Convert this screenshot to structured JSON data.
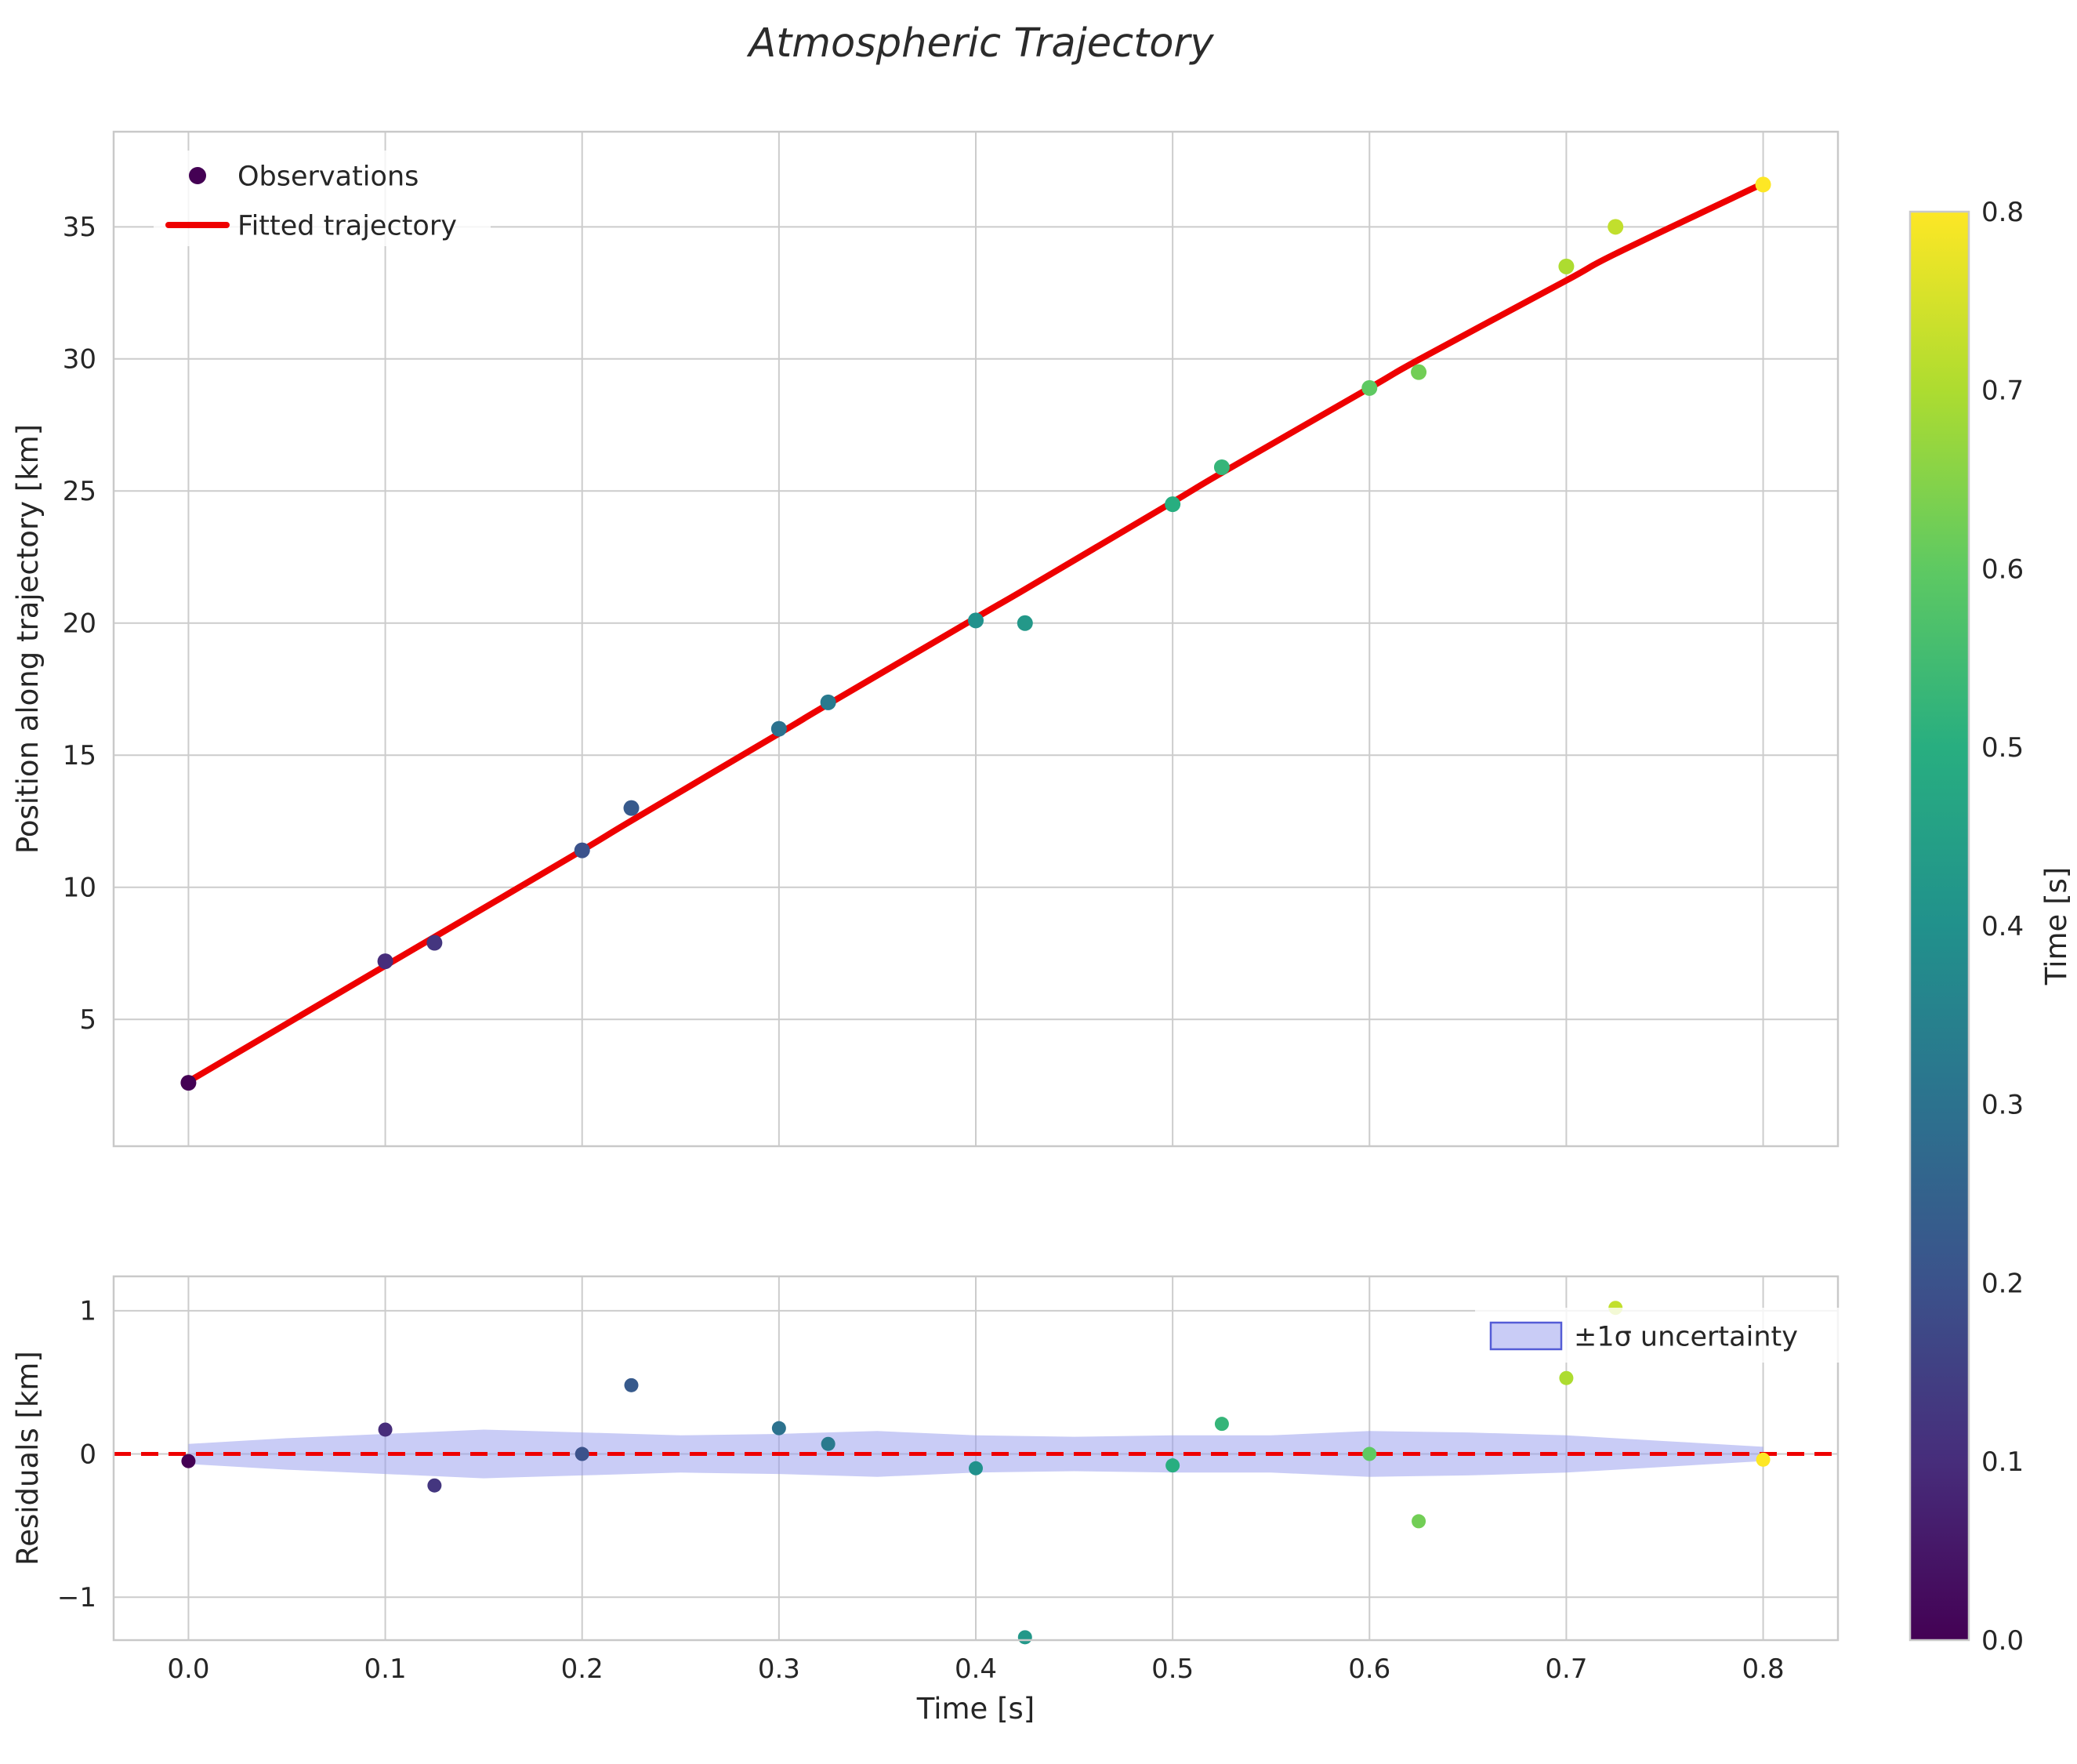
{
  "figure": {
    "title": "Atmospheric Trajectory"
  },
  "style": {
    "background": "#ffffff",
    "grid_color": "#cccccc",
    "spine_color": "#c9c9c9",
    "tick_color": "#262626",
    "title_color": "#2b2b2b",
    "fit_color": "#ee0000",
    "zero_line_color": "#ee0000",
    "band_fill": "#9399ee",
    "band_opacity": 0.5,
    "band_edge": "#545cd6",
    "viridis_stops": [
      [
        0,
        "#440154"
      ],
      [
        0.125,
        "#472d7b"
      ],
      [
        0.25,
        "#3b528b"
      ],
      [
        0.375,
        "#2c728e"
      ],
      [
        0.5,
        "#21918c"
      ],
      [
        0.625,
        "#28ae80"
      ],
      [
        0.75,
        "#5ec962"
      ],
      [
        0.875,
        "#addc30"
      ],
      [
        1,
        "#fde725"
      ]
    ]
  },
  "chart_data": [
    {
      "type": "scatter",
      "panel": "main",
      "title": "Atmospheric Trajectory",
      "xlabel": "",
      "ylabel": "Position along trajectory [km]",
      "xlim": [
        -0.038,
        0.838
      ],
      "ylim": [
        0.2,
        38.6
      ],
      "grid": true,
      "x_gridlines": [
        0.0,
        0.1,
        0.2,
        0.3,
        0.4,
        0.5,
        0.6,
        0.7,
        0.8
      ],
      "y_ticks": [
        5,
        10,
        15,
        20,
        25,
        30,
        35
      ],
      "y_tick_labels": [
        "5",
        "10",
        "15",
        "20",
        "25",
        "30",
        "35"
      ],
      "legend_position": "upper left",
      "legend_labels": [
        "Observations",
        "Fitted trajectory"
      ],
      "series": [
        {
          "name": "Observations",
          "type": "scatter",
          "color_by": "time, viridis colormap",
          "t": [
            0.0,
            0.1,
            0.125,
            0.2,
            0.225,
            0.3,
            0.325,
            0.4,
            0.425,
            0.5,
            0.525,
            0.6,
            0.625,
            0.7,
            0.725,
            0.8
          ],
          "position_km": [
            2.6,
            7.2,
            7.9,
            11.4,
            13.0,
            16.0,
            17.0,
            20.1,
            20.0,
            24.5,
            25.9,
            28.9,
            29.5,
            33.5,
            35.0,
            36.6
          ]
        },
        {
          "name": "Fitted trajectory",
          "type": "line",
          "color": "#ee0000",
          "t": [
            0.0,
            0.1,
            0.125,
            0.2,
            0.225,
            0.3,
            0.325,
            0.4,
            0.425,
            0.5,
            0.525,
            0.6,
            0.625,
            0.7,
            0.725,
            0.8
          ],
          "position_km": [
            2.65,
            7.03,
            8.12,
            11.4,
            12.52,
            15.82,
            16.93,
            20.2,
            21.28,
            24.58,
            25.69,
            28.9,
            29.97,
            32.97,
            33.98,
            36.64
          ]
        }
      ]
    },
    {
      "type": "scatter",
      "panel": "residuals",
      "xlabel": "Time [s]",
      "ylabel": "Residuals [km]",
      "xlim": [
        -0.038,
        0.838
      ],
      "ylim": [
        -1.3,
        1.24
      ],
      "grid": true,
      "x_ticks": [
        0.0,
        0.1,
        0.2,
        0.3,
        0.4,
        0.5,
        0.6,
        0.7,
        0.8
      ],
      "x_tick_labels": [
        "0.0",
        "0.1",
        "0.2",
        "0.3",
        "0.4",
        "0.5",
        "0.6",
        "0.7",
        "0.8"
      ],
      "y_ticks": [
        -1,
        0,
        1
      ],
      "y_tick_labels": [
        "−1",
        "0",
        "1"
      ],
      "zero_line": {
        "y": 0,
        "style": "dashed",
        "color": "#ee0000"
      },
      "legend_labels": [
        "±1σ uncertainty"
      ],
      "band": {
        "label": "±1σ uncertainty",
        "t": [
          0.0,
          0.05,
          0.1,
          0.15,
          0.2,
          0.25,
          0.3,
          0.35,
          0.4,
          0.45,
          0.5,
          0.55,
          0.6,
          0.65,
          0.7,
          0.75,
          0.8
        ],
        "half_width_km": [
          0.07,
          0.11,
          0.14,
          0.17,
          0.15,
          0.13,
          0.14,
          0.16,
          0.13,
          0.12,
          0.13,
          0.13,
          0.16,
          0.15,
          0.13,
          0.09,
          0.05
        ]
      },
      "points": {
        "t": [
          0.0,
          0.1,
          0.125,
          0.2,
          0.225,
          0.3,
          0.325,
          0.4,
          0.425,
          0.5,
          0.525,
          0.6,
          0.625,
          0.7,
          0.725,
          0.8
        ],
        "residual_km": [
          -0.05,
          0.17,
          -0.22,
          0.0,
          0.48,
          0.18,
          0.07,
          -0.1,
          -1.28,
          -0.08,
          0.21,
          0.0,
          -0.47,
          0.53,
          1.02,
          -0.04
        ]
      }
    }
  ],
  "colorbar": {
    "label": "Time [s]",
    "colormap": "viridis",
    "vmin": 0.0,
    "vmax": 0.8,
    "tick_values": [
      0.0,
      0.1,
      0.2,
      0.3,
      0.4,
      0.5,
      0.6,
      0.7,
      0.8
    ],
    "tick_labels": [
      "0.0",
      "0.1",
      "0.2",
      "0.3",
      "0.4",
      "0.5",
      "0.6",
      "0.7",
      "0.8"
    ]
  }
}
